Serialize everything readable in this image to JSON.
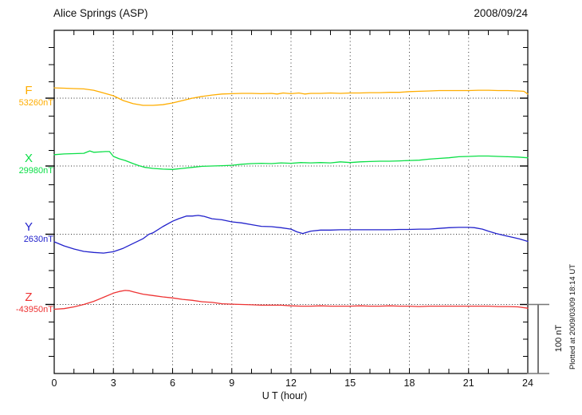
{
  "header": {
    "title": "Alice Springs (ASP)",
    "date": "2008/09/24"
  },
  "xaxis": {
    "label": "U T (hour)",
    "ticks": [
      "0",
      "3",
      "6",
      "9",
      "12",
      "15",
      "18",
      "21",
      "24"
    ]
  },
  "scale_bar": {
    "label": "100 nT",
    "nT": 100
  },
  "footer_note": "Plotted at 2009/03/09 18:14 UT",
  "colors": {
    "F": "#FFAD00",
    "X": "#0ADF46",
    "Y": "#2222CC",
    "Z": "#EE3333",
    "axis": "#000000",
    "grid": "#333333",
    "scale_bar": "#777777"
  },
  "chart_data": {
    "type": "line",
    "title": "Alice Springs (ASP) magnetogram",
    "date": "2008/09/24",
    "xlabel": "U T (hour)",
    "x_range_hours": [
      0,
      24
    ],
    "x_tick_interval_hours": 3,
    "x_gridlines_hours": [
      3,
      6,
      9,
      12,
      15,
      18,
      21
    ],
    "grid": "dotted vertical every 3h, dotted horizontal baseline per channel",
    "scale_nT_per_division": 100,
    "points_format": "[hour_UT, delta_nT_from_baseline]",
    "series": [
      {
        "name": "F",
        "baseline_label": "53260nT",
        "baseline_nT": 53260,
        "color": "#FFAD00",
        "points": [
          [
            0,
            15
          ],
          [
            0.5,
            14.5
          ],
          [
            1,
            14
          ],
          [
            1.5,
            13.5
          ],
          [
            2,
            11.5
          ],
          [
            2.5,
            7.5
          ],
          [
            3,
            3.5
          ],
          [
            3.5,
            -3.5
          ],
          [
            4,
            -8
          ],
          [
            4.5,
            -10.5
          ],
          [
            5,
            -10.5
          ],
          [
            5.5,
            -9.5
          ],
          [
            6,
            -7
          ],
          [
            6.5,
            -3.5
          ],
          [
            7,
            0
          ],
          [
            7.5,
            2.5
          ],
          [
            8,
            4.5
          ],
          [
            8.5,
            6
          ],
          [
            9,
            6.5
          ],
          [
            9.5,
            7
          ],
          [
            10,
            7
          ],
          [
            10.5,
            6.5
          ],
          [
            11,
            7
          ],
          [
            11.3,
            6
          ],
          [
            11.6,
            7.5
          ],
          [
            12,
            6.5
          ],
          [
            12.4,
            7.5
          ],
          [
            12.7,
            6
          ],
          [
            13,
            7
          ],
          [
            13.5,
            7
          ],
          [
            14,
            7.5
          ],
          [
            14.5,
            7
          ],
          [
            15,
            7.5
          ],
          [
            15.5,
            7.5
          ],
          [
            16,
            8
          ],
          [
            16.5,
            8
          ],
          [
            17,
            8.5
          ],
          [
            17.5,
            8.5
          ],
          [
            18,
            9.5
          ],
          [
            18.5,
            10
          ],
          [
            19,
            10.5
          ],
          [
            19.5,
            11
          ],
          [
            20,
            11
          ],
          [
            20.5,
            11
          ],
          [
            21,
            11
          ],
          [
            21.5,
            11.5
          ],
          [
            22,
            11.5
          ],
          [
            22.5,
            11
          ],
          [
            23,
            11
          ],
          [
            23.5,
            10.5
          ],
          [
            23.8,
            10
          ],
          [
            24,
            6
          ]
        ]
      },
      {
        "name": "X",
        "baseline_label": "29980nT",
        "baseline_nT": 29980,
        "color": "#0ADF46",
        "points": [
          [
            0,
            16.5
          ],
          [
            0.5,
            17.5
          ],
          [
            1,
            18
          ],
          [
            1.5,
            18.5
          ],
          [
            1.8,
            22
          ],
          [
            2,
            20
          ],
          [
            2.3,
            20.5
          ],
          [
            2.6,
            21
          ],
          [
            2.8,
            21
          ],
          [
            3,
            14
          ],
          [
            3.3,
            10.5
          ],
          [
            3.6,
            8
          ],
          [
            4,
            3.5
          ],
          [
            4.3,
            0.5
          ],
          [
            4.6,
            -2
          ],
          [
            5,
            -3.5
          ],
          [
            5.5,
            -4.5
          ],
          [
            6,
            -5
          ],
          [
            6.5,
            -3.5
          ],
          [
            7,
            -2
          ],
          [
            7.5,
            -0.5
          ],
          [
            8,
            0
          ],
          [
            8.5,
            0.5
          ],
          [
            9,
            1
          ],
          [
            9.5,
            2.5
          ],
          [
            10,
            3.5
          ],
          [
            10.5,
            4
          ],
          [
            11,
            3.5
          ],
          [
            11.5,
            4.5
          ],
          [
            12,
            4
          ],
          [
            12.5,
            5
          ],
          [
            13,
            4.5
          ],
          [
            13.5,
            5
          ],
          [
            14,
            4.5
          ],
          [
            14.5,
            6
          ],
          [
            15,
            5
          ],
          [
            15.5,
            6
          ],
          [
            16,
            6.5
          ],
          [
            16.5,
            7
          ],
          [
            17,
            7
          ],
          [
            17.5,
            7.5
          ],
          [
            18,
            8
          ],
          [
            18.5,
            8.5
          ],
          [
            19,
            10
          ],
          [
            19.5,
            11
          ],
          [
            20,
            12
          ],
          [
            20.5,
            13.5
          ],
          [
            21,
            14
          ],
          [
            21.5,
            14.5
          ],
          [
            22,
            14.5
          ],
          [
            22.5,
            14
          ],
          [
            23,
            13.5
          ],
          [
            23.5,
            13
          ],
          [
            24,
            12
          ]
        ]
      },
      {
        "name": "Y",
        "baseline_label": "2630nT",
        "baseline_nT": 2630,
        "color": "#2222CC",
        "points": [
          [
            0,
            -11
          ],
          [
            0.5,
            -17
          ],
          [
            1,
            -21.5
          ],
          [
            1.5,
            -25
          ],
          [
            2,
            -26.5
          ],
          [
            2.5,
            -27.5
          ],
          [
            3,
            -25.5
          ],
          [
            3.5,
            -20.5
          ],
          [
            4,
            -13.5
          ],
          [
            4.5,
            -6.5
          ],
          [
            4.8,
            0
          ],
          [
            5,
            2
          ],
          [
            5.5,
            11
          ],
          [
            6,
            19
          ],
          [
            6.3,
            22.5
          ],
          [
            6.7,
            26.5
          ],
          [
            7,
            26.5
          ],
          [
            7.3,
            27.5
          ],
          [
            7.6,
            26
          ],
          [
            8,
            22.5
          ],
          [
            8.5,
            21
          ],
          [
            9,
            18
          ],
          [
            9.5,
            16.5
          ],
          [
            10,
            14
          ],
          [
            10.5,
            11.5
          ],
          [
            11,
            11
          ],
          [
            11.5,
            9.5
          ],
          [
            12,
            7.5
          ],
          [
            12.3,
            3.5
          ],
          [
            12.6,
            1
          ],
          [
            13,
            4.5
          ],
          [
            13.5,
            6
          ],
          [
            14,
            6
          ],
          [
            14.5,
            6.5
          ],
          [
            15,
            6.5
          ],
          [
            15.5,
            6.5
          ],
          [
            16,
            6.5
          ],
          [
            16.5,
            6.5
          ],
          [
            17,
            6.5
          ],
          [
            17.5,
            7
          ],
          [
            18,
            7
          ],
          [
            18.5,
            7.5
          ],
          [
            19,
            7.5
          ],
          [
            19.5,
            8.5
          ],
          [
            20,
            9.5
          ],
          [
            20.5,
            10
          ],
          [
            21,
            10
          ],
          [
            21.3,
            9.5
          ],
          [
            21.7,
            7.5
          ],
          [
            22,
            4.5
          ],
          [
            22.4,
            1
          ],
          [
            22.7,
            -1
          ],
          [
            23,
            -3
          ],
          [
            23.3,
            -5
          ],
          [
            23.6,
            -7
          ],
          [
            24,
            -10.5
          ]
        ]
      },
      {
        "name": "Z",
        "baseline_label": "-43950nT",
        "baseline_nT": -43950,
        "color": "#EE3333",
        "points": [
          [
            0,
            -7
          ],
          [
            0.5,
            -6
          ],
          [
            1,
            -3.5
          ],
          [
            1.5,
            0
          ],
          [
            2,
            4.5
          ],
          [
            2.5,
            10.5
          ],
          [
            3,
            16.5
          ],
          [
            3.3,
            19
          ],
          [
            3.6,
            20.5
          ],
          [
            3.8,
            20
          ],
          [
            4,
            18.5
          ],
          [
            4.5,
            15
          ],
          [
            5,
            13
          ],
          [
            5.5,
            11
          ],
          [
            6,
            9.5
          ],
          [
            6.5,
            7.5
          ],
          [
            7,
            6
          ],
          [
            7.5,
            4
          ],
          [
            8,
            3
          ],
          [
            8.5,
            1
          ],
          [
            9,
            0.5
          ],
          [
            9.5,
            0
          ],
          [
            10,
            -0.5
          ],
          [
            10.5,
            -1
          ],
          [
            11,
            -1
          ],
          [
            11.5,
            -1
          ],
          [
            12,
            -2
          ],
          [
            12.5,
            -2.5
          ],
          [
            13,
            -2.5
          ],
          [
            13.5,
            -2
          ],
          [
            14,
            -2.5
          ],
          [
            14.5,
            -2.5
          ],
          [
            15,
            -2.5
          ],
          [
            15.5,
            -2
          ],
          [
            16,
            -2.5
          ],
          [
            16.5,
            -2.5
          ],
          [
            17,
            -2
          ],
          [
            17.5,
            -2.5
          ],
          [
            18,
            -2.5
          ],
          [
            18.5,
            -3
          ],
          [
            19,
            -2.5
          ],
          [
            19.5,
            -2.5
          ],
          [
            20,
            -2.5
          ],
          [
            20.5,
            -2.5
          ],
          [
            21,
            -2.5
          ],
          [
            21.5,
            -2.5
          ],
          [
            22,
            -2.5
          ],
          [
            22.5,
            -3
          ],
          [
            23,
            -3
          ],
          [
            23.5,
            -3.5
          ],
          [
            24,
            -5.5
          ]
        ]
      }
    ]
  }
}
